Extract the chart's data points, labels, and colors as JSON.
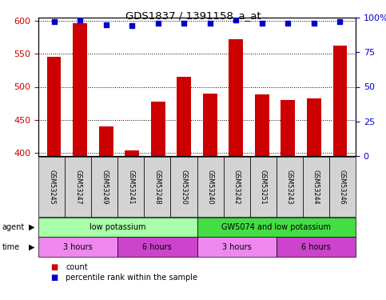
{
  "title": "GDS1837 / 1391158_a_at",
  "samples": [
    "GSM53245",
    "GSM53247",
    "GSM53249",
    "GSM53241",
    "GSM53248",
    "GSM53250",
    "GSM53240",
    "GSM53242",
    "GSM53251",
    "GSM53243",
    "GSM53244",
    "GSM53246"
  ],
  "count_values": [
    545,
    597,
    440,
    403,
    477,
    515,
    490,
    572,
    488,
    480,
    483,
    562
  ],
  "percentile_values": [
    97,
    98,
    95,
    94,
    96,
    96,
    96,
    98,
    96,
    96,
    96,
    97
  ],
  "ylim_left": [
    395,
    605
  ],
  "ylim_right": [
    0,
    100
  ],
  "yticks_left": [
    400,
    450,
    500,
    550,
    600
  ],
  "yticks_right": [
    0,
    25,
    50,
    75,
    100
  ],
  "bar_color": "#cc0000",
  "dot_color": "#0000cc",
  "agent_groups": [
    {
      "label": "low potassium",
      "start": 0,
      "end": 6,
      "color": "#aaffaa"
    },
    {
      "label": "GW5074 and low potassium",
      "start": 6,
      "end": 12,
      "color": "#44dd44"
    }
  ],
  "time_groups": [
    {
      "label": "3 hours",
      "start": 0,
      "end": 3,
      "color": "#ee88ee"
    },
    {
      "label": "6 hours",
      "start": 3,
      "end": 6,
      "color": "#cc44cc"
    },
    {
      "label": "3 hours",
      "start": 6,
      "end": 9,
      "color": "#ee88ee"
    },
    {
      "label": "6 hours",
      "start": 9,
      "end": 12,
      "color": "#cc44cc"
    }
  ],
  "legend_count_color": "#cc0000",
  "legend_dot_color": "#0000cc",
  "bar_width": 0.55,
  "fig_width": 4.83,
  "fig_height": 3.75,
  "dpi": 100
}
